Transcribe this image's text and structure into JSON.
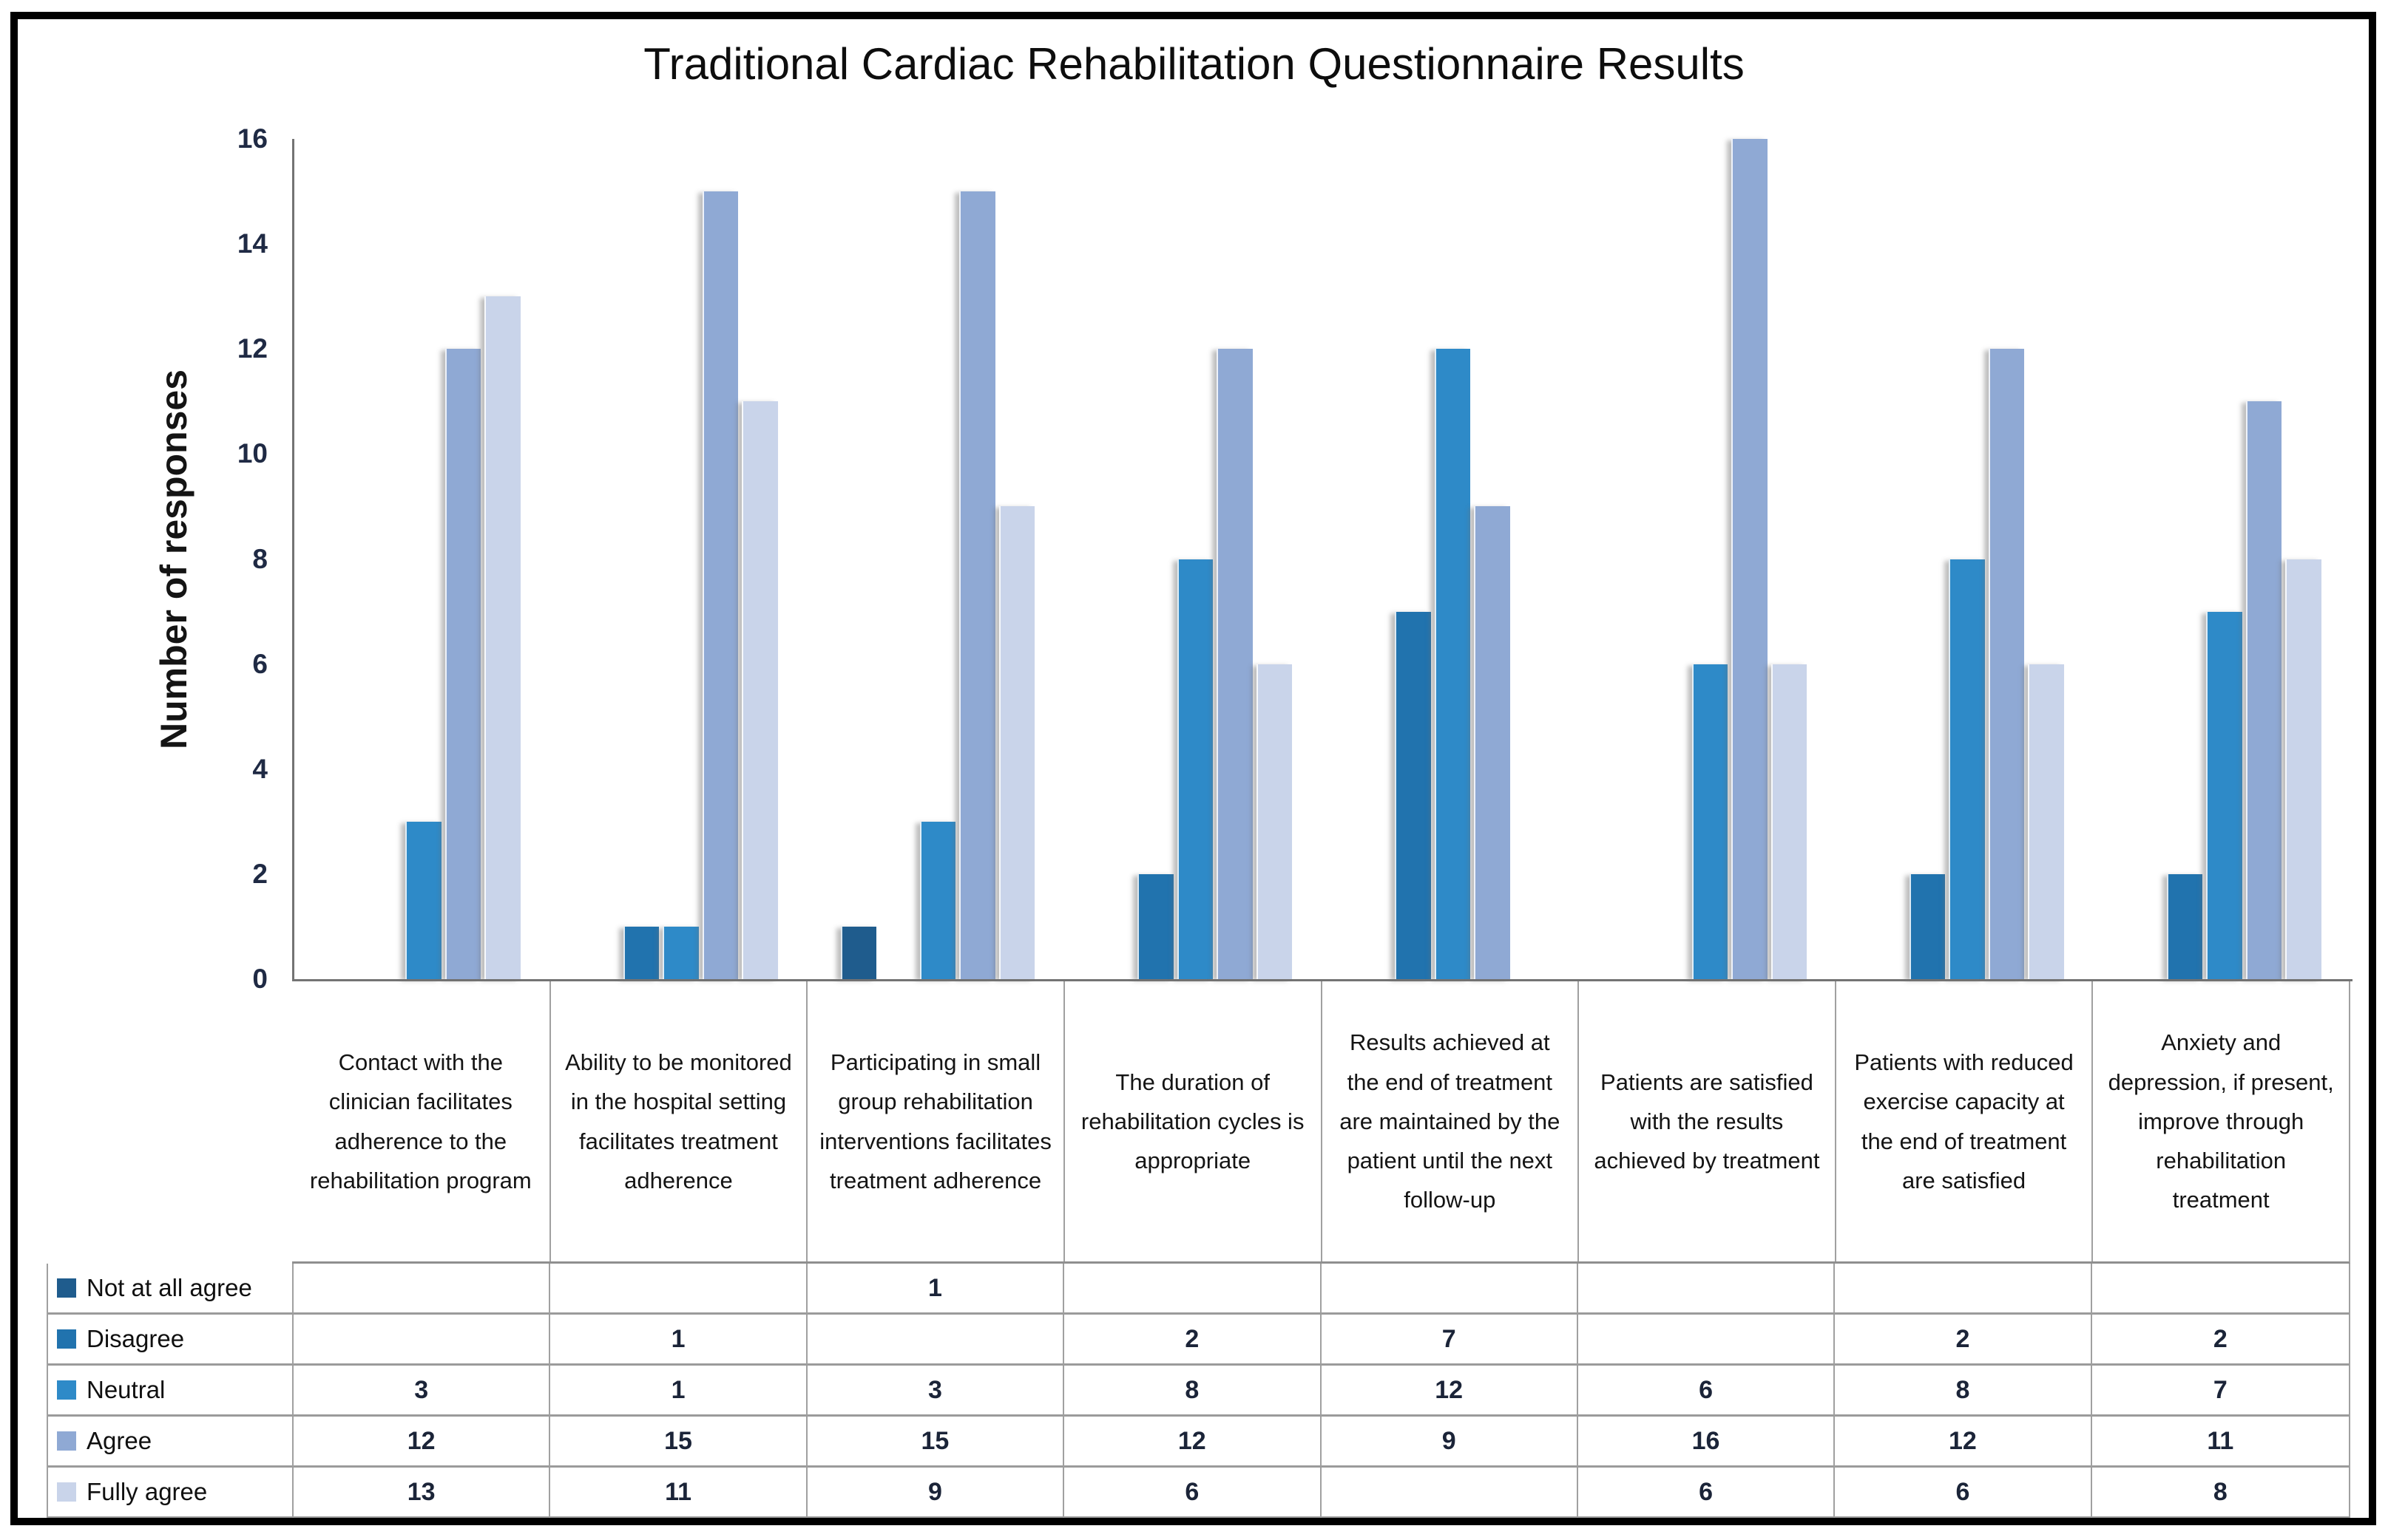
{
  "chart_data": {
    "type": "bar",
    "title": "Traditional Cardiac Rehabilitation Questionnaire Results",
    "ylabel": "Number of responses",
    "xlabel": "",
    "ylim": [
      0,
      16
    ],
    "yticks": [
      0,
      2,
      4,
      6,
      8,
      10,
      12,
      14,
      16
    ],
    "grid": false,
    "legend_position": "table-below",
    "axis_color": "#737373",
    "categories": [
      "Contact with the clinician facilitates adherence to the rehabilitation program",
      "Ability to be monitored in the hospital setting facilitates treatment adherence",
      "Participating in small group rehabilitation interventions facilitates treatment adherence",
      "The duration of rehabilitation cycles is appropriate",
      "Results achieved at the end of treatment are maintained by the patient until the next follow-up",
      "Patients are satisfied with the results achieved by treatment",
      "Patients with reduced exercise capacity at the end of treatment are satisfied",
      "Anxiety and depression, if present, improve through rehabilitation treatment"
    ],
    "series": [
      {
        "name": "Not at all agree",
        "color": "#1f5c8d",
        "values": [
          0,
          0,
          1,
          0,
          0,
          0,
          0,
          0
        ]
      },
      {
        "name": "Disagree",
        "color": "#2173ae",
        "values": [
          0,
          1,
          0,
          2,
          7,
          0,
          2,
          2
        ]
      },
      {
        "name": "Neutral",
        "color": "#2e8ac8",
        "values": [
          3,
          1,
          3,
          8,
          12,
          6,
          8,
          7
        ]
      },
      {
        "name": "Agree",
        "color": "#8fa9d4",
        "values": [
          12,
          15,
          15,
          12,
          9,
          16,
          12,
          11
        ]
      },
      {
        "name": "Fully agree",
        "color": "#c9d4ea",
        "values": [
          13,
          11,
          9,
          6,
          0,
          6,
          6,
          8
        ]
      }
    ],
    "table_cells": [
      [
        "",
        "",
        "1",
        "",
        "",
        "",
        "",
        ""
      ],
      [
        "",
        "1",
        "",
        "2",
        "7",
        "",
        "2",
        "2"
      ],
      [
        "3",
        "1",
        "3",
        "8",
        "12",
        "6",
        "8",
        "7"
      ],
      [
        "12",
        "15",
        "15",
        "12",
        "9",
        "16",
        "12",
        "11"
      ],
      [
        "13",
        "11",
        "9",
        "6",
        "",
        "6",
        "6",
        "8"
      ]
    ]
  }
}
